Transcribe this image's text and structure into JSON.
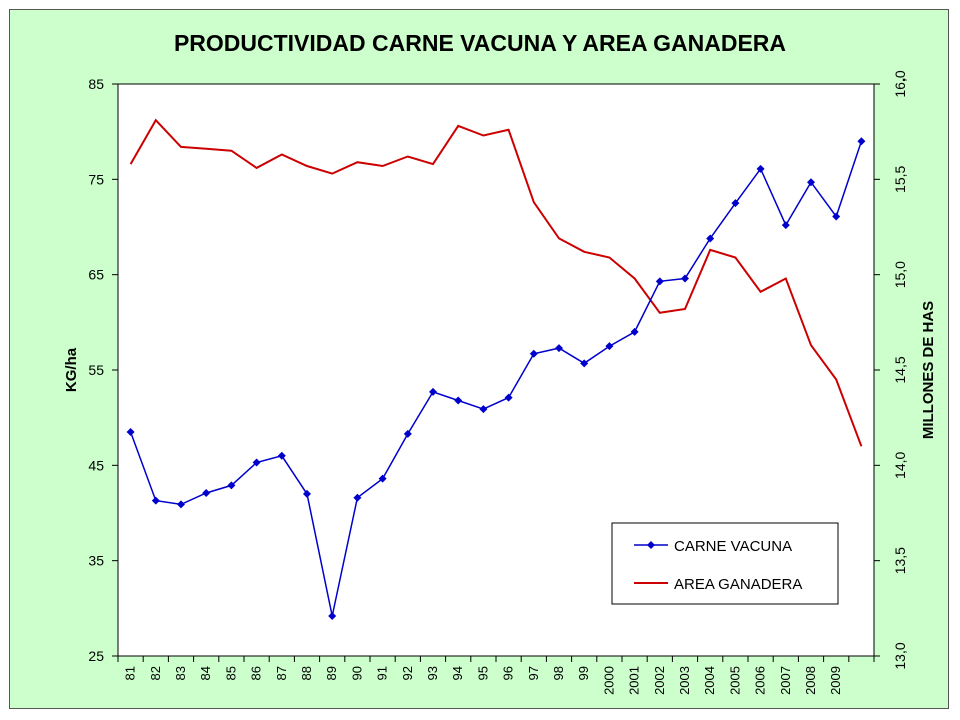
{
  "chart_data": {
    "type": "line",
    "title": "PRODUCTIVIDAD CARNE VACUNA Y AREA GANADERA",
    "ylabel": "KG/ha",
    "y2label": "MILLONES DE HAS",
    "ylim": [
      25,
      85
    ],
    "y2lim": [
      13.0,
      16.0
    ],
    "yticks": [
      "25",
      "35",
      "45",
      "55",
      "65",
      "75",
      "85"
    ],
    "y2ticks": [
      "13,0",
      "13,5",
      "14,0",
      "14,5",
      "15,0",
      "15,5",
      "16,0"
    ],
    "categories": [
      "81",
      "82",
      "83",
      "84",
      "85",
      "86",
      "87",
      "88",
      "89",
      "90",
      "91",
      "92",
      "93",
      "94",
      "95",
      "96",
      "97",
      "98",
      "99",
      "2000",
      "2001",
      "2002",
      "2003",
      "2004",
      "2005",
      "2006",
      "2007",
      "2008",
      "2009",
      ""
    ],
    "grid": false,
    "legend_position": "bottom-right",
    "series": [
      {
        "name": "CARNE VACUNA",
        "axis": "left",
        "color": "#0000cc",
        "marker": "diamond",
        "values": [
          48.5,
          41.3,
          40.9,
          42.1,
          42.9,
          45.3,
          46.0,
          42.0,
          29.2,
          41.6,
          43.6,
          48.3,
          52.7,
          51.8,
          50.9,
          52.1,
          56.7,
          57.3,
          55.7,
          57.5,
          59.0,
          64.3,
          64.6,
          68.8,
          72.5,
          76.1,
          70.2,
          74.7,
          71.1,
          79.0
        ]
      },
      {
        "name": "AREA GANADERA",
        "axis": "right",
        "color": "#cc0000",
        "marker": "none",
        "values": [
          15.58,
          15.81,
          15.67,
          15.66,
          15.65,
          15.56,
          15.63,
          15.57,
          15.53,
          15.59,
          15.57,
          15.62,
          15.58,
          15.78,
          15.73,
          15.76,
          15.38,
          15.19,
          15.12,
          15.09,
          14.98,
          14.8,
          14.82,
          15.13,
          15.09,
          14.91,
          14.98,
          14.63,
          14.45,
          14.1
        ]
      }
    ],
    "annotations": [
      "."
    ]
  }
}
